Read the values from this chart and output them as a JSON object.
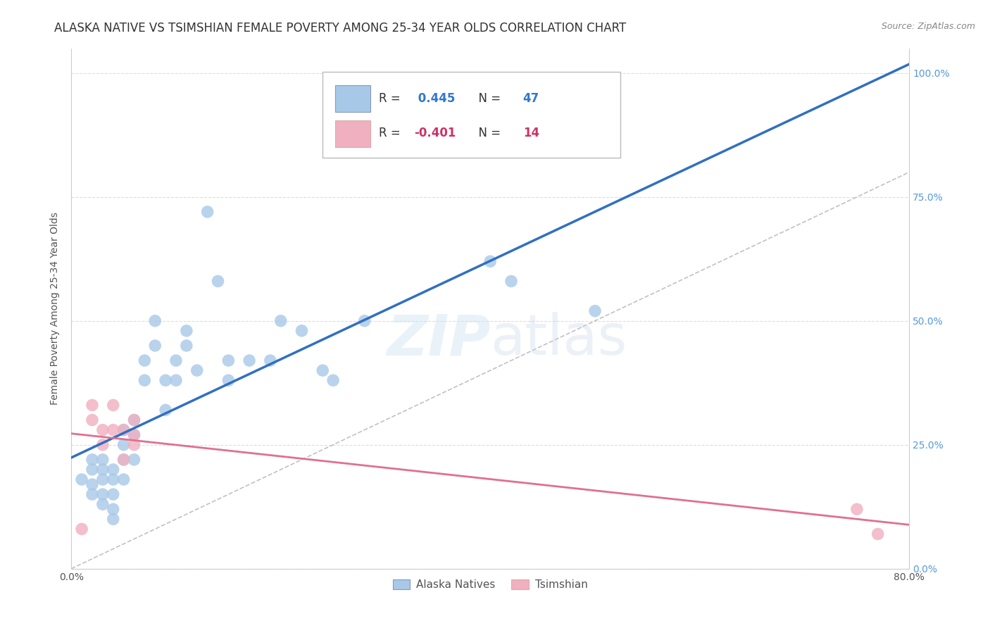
{
  "title": "ALASKA NATIVE VS TSIMSHIAN FEMALE POVERTY AMONG 25-34 YEAR OLDS CORRELATION CHART",
  "source": "Source: ZipAtlas.com",
  "ylabel": "Female Poverty Among 25-34 Year Olds",
  "xlim": [
    0.0,
    0.8
  ],
  "ylim": [
    0.0,
    1.05
  ],
  "alaska_native_x": [
    0.01,
    0.02,
    0.02,
    0.02,
    0.02,
    0.03,
    0.03,
    0.03,
    0.03,
    0.03,
    0.04,
    0.04,
    0.04,
    0.04,
    0.04,
    0.05,
    0.05,
    0.05,
    0.05,
    0.06,
    0.06,
    0.06,
    0.07,
    0.07,
    0.08,
    0.08,
    0.09,
    0.09,
    0.1,
    0.1,
    0.11,
    0.11,
    0.12,
    0.13,
    0.14,
    0.15,
    0.15,
    0.17,
    0.19,
    0.2,
    0.22,
    0.24,
    0.25,
    0.28,
    0.4,
    0.42,
    0.5
  ],
  "alaska_native_y": [
    0.18,
    0.22,
    0.2,
    0.17,
    0.15,
    0.22,
    0.2,
    0.18,
    0.15,
    0.13,
    0.2,
    0.18,
    0.15,
    0.12,
    0.1,
    0.28,
    0.25,
    0.22,
    0.18,
    0.3,
    0.27,
    0.22,
    0.42,
    0.38,
    0.5,
    0.45,
    0.38,
    0.32,
    0.42,
    0.38,
    0.48,
    0.45,
    0.4,
    0.72,
    0.58,
    0.42,
    0.38,
    0.42,
    0.42,
    0.5,
    0.48,
    0.4,
    0.38,
    0.5,
    0.62,
    0.58,
    0.52
  ],
  "tsimshian_x": [
    0.01,
    0.02,
    0.02,
    0.03,
    0.03,
    0.04,
    0.04,
    0.05,
    0.05,
    0.06,
    0.06,
    0.06,
    0.75,
    0.77
  ],
  "tsimshian_y": [
    0.08,
    0.33,
    0.3,
    0.28,
    0.25,
    0.33,
    0.28,
    0.28,
    0.22,
    0.3,
    0.27,
    0.25,
    0.12,
    0.07
  ],
  "alaska_R": 0.445,
  "alaska_N": 47,
  "tsimshian_R": -0.401,
  "tsimshian_N": 14,
  "alaska_color": "#a8c8e8",
  "tsimshian_color": "#f0b0c0",
  "alaska_line_color": "#3070c0",
  "tsimshian_line_color": "#e07090",
  "diagonal_color": "#bbbbbb",
  "background_color": "#ffffff",
  "grid_color": "#dddddd",
  "watermark": "ZIPatlas",
  "title_fontsize": 12,
  "axis_label_fontsize": 10,
  "legend_fontsize": 12
}
